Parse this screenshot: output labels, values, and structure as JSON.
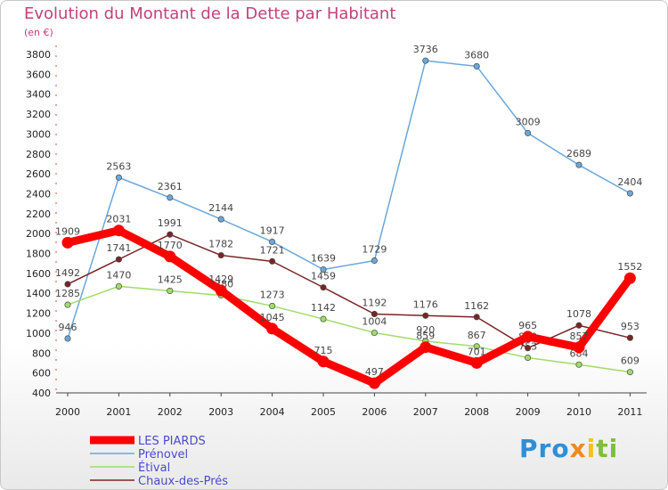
{
  "title": "Evolution du Montant de la Dette par Habitant",
  "unit": "(en €)",
  "logo": [
    "Pro",
    "x",
    "i",
    "ti"
  ],
  "chart_data": {
    "type": "line",
    "categories": [
      "2000",
      "2001",
      "2002",
      "2003",
      "2004",
      "2005",
      "2006",
      "2007",
      "2008",
      "2009",
      "2010",
      "2011"
    ],
    "ylim": [
      400,
      3800
    ],
    "yticks": [
      400,
      600,
      800,
      1000,
      1200,
      1400,
      1600,
      1800,
      2000,
      2200,
      2400,
      2600,
      2800,
      3000,
      3200,
      3400,
      3600,
      3800
    ],
    "grid": false,
    "legend_position": "bottom-left",
    "series": [
      {
        "name": "Prénovel",
        "color": "#6aa7dc",
        "values": [
          946,
          2563,
          2361,
          2144,
          1917,
          1639,
          1729,
          3736,
          3680,
          3009,
          2689,
          2404
        ]
      },
      {
        "name": "Étival",
        "color": "#9fdc6a",
        "values": [
          1285,
          1470,
          1425,
          1380,
          1273,
          1142,
          1004,
          920,
          867,
          753,
          684,
          609
        ]
      },
      {
        "name": "Chaux-des-Prés",
        "color": "#7a2424",
        "values": [
          1492,
          1741,
          1991,
          1782,
          1721,
          1459,
          1192,
          1176,
          1162,
          850,
          1078,
          953
        ]
      },
      {
        "name": "LES PIARDS",
        "color": "#ff0000",
        "values": [
          1909,
          2031,
          1770,
          1429,
          1045,
          715,
          497,
          859,
          701,
          965,
          857,
          1552
        ]
      }
    ]
  }
}
